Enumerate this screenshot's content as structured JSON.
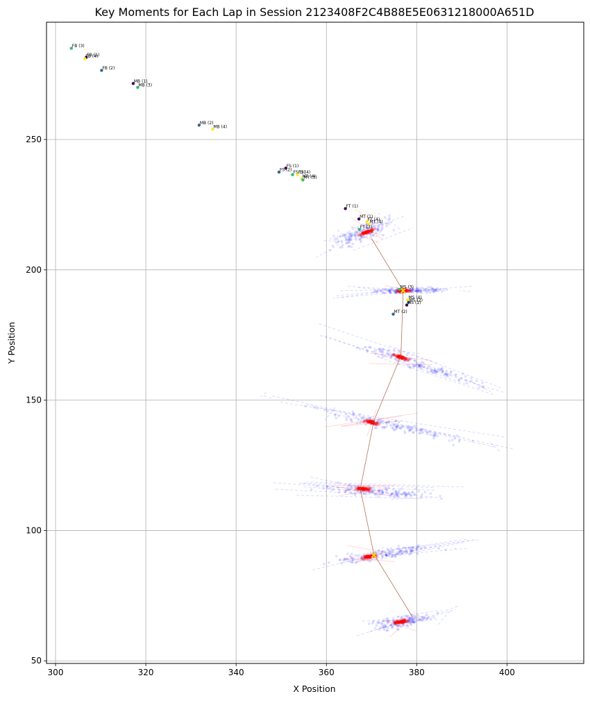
{
  "chart_data": {
    "type": "scatter",
    "title": "Key Moments for Each Lap in Session 2123408F2C4B88E5E0631218000A651D",
    "xlabel": "X Position",
    "ylabel": "Y Position",
    "xlim": [
      298,
      417
    ],
    "ylim": [
      49,
      295
    ],
    "xticks": [
      300,
      320,
      340,
      360,
      380,
      400
    ],
    "yticks": [
      50,
      100,
      150,
      200,
      250
    ],
    "grid": true,
    "legend": "none",
    "colors": {
      "trace_blue": "#0000ff",
      "trace_red": "#ff0000",
      "path": "#a0522d",
      "lap1": "#440154",
      "lap2": "#31688e",
      "lap3": "#35b779",
      "lap4": "#fde725",
      "marker_cross": "#ffd700"
    },
    "trace_clusters": [
      {
        "cx": 368,
        "cy": 214,
        "spread_x": 9,
        "spread_y": 5,
        "slope": 0.6,
        "red_cx": 369,
        "red_cy": 214.5
      },
      {
        "cx": 378,
        "cy": 192,
        "spread_x": 12,
        "spread_y": 1.5,
        "slope": 0.05,
        "red_cx": 377,
        "red_cy": 192
      },
      {
        "cx": 380,
        "cy": 164,
        "spread_x": 18,
        "spread_y": 3,
        "slope": -0.55,
        "red_cx": 376.5,
        "red_cy": 166.5
      },
      {
        "cx": 375,
        "cy": 140,
        "spread_x": 22,
        "spread_y": 3,
        "slope": -0.35,
        "red_cx": 370,
        "red_cy": 141.5
      },
      {
        "cx": 372,
        "cy": 115,
        "spread_x": 18,
        "spread_y": 2.5,
        "slope": -0.12,
        "red_cx": 368,
        "red_cy": 116
      },
      {
        "cx": 373,
        "cy": 91,
        "spread_x": 15,
        "spread_y": 3,
        "slope": 0.25,
        "red_cx": 369.5,
        "red_cy": 90
      },
      {
        "cx": 377,
        "cy": 65,
        "spread_x": 10,
        "spread_y": 3,
        "slope": 0.3,
        "red_cx": 376.5,
        "red_cy": 65
      }
    ],
    "path_line": [
      [
        370,
        212
      ],
      [
        377,
        192
      ],
      [
        376.5,
        167
      ],
      [
        370.5,
        142
      ],
      [
        367.5,
        116
      ],
      [
        370.5,
        91
      ],
      [
        379,
        67
      ]
    ],
    "cross_markers": [
      [
        377,
        192
      ],
      [
        370.5,
        90.5
      ]
    ],
    "key_moments": [
      {
        "label": "FB (3)",
        "x": 303.5,
        "y": 285,
        "lap": 3
      },
      {
        "label": "FB (1)",
        "x": 306.8,
        "y": 281.5,
        "lap": 1
      },
      {
        "label": "FB (4)",
        "x": 306.5,
        "y": 281,
        "lap": 4
      },
      {
        "label": "FB (2)",
        "x": 310.2,
        "y": 276.5,
        "lap": 2
      },
      {
        "label": "MB (1)",
        "x": 317.2,
        "y": 271.5,
        "lap": 1
      },
      {
        "label": "MB (3)",
        "x": 318.2,
        "y": 270,
        "lap": 3
      },
      {
        "label": "MB (2)",
        "x": 331.8,
        "y": 255.5,
        "lap": 2
      },
      {
        "label": "MB (4)",
        "x": 334.8,
        "y": 254,
        "lap": 4
      },
      {
        "label": "FS (1)",
        "x": 351,
        "y": 239,
        "lap": 1
      },
      {
        "label": "FS (2)",
        "x": 349.5,
        "y": 237.5,
        "lap": 2
      },
      {
        "label": "FS (3)",
        "x": 352.5,
        "y": 236.5,
        "lap": 3
      },
      {
        "label": "FS (4)",
        "x": 353.6,
        "y": 236.5,
        "lap": 4
      },
      {
        "label": "MT (4)",
        "x": 354.5,
        "y": 235,
        "lap": 4
      },
      {
        "label": "MT (3)",
        "x": 354.8,
        "y": 234.5,
        "lap": 3
      },
      {
        "label": "FT (1)",
        "x": 364.2,
        "y": 223.5,
        "lap": 1
      },
      {
        "label": "MT (1)",
        "x": 367.2,
        "y": 219.5,
        "lap": 1
      },
      {
        "label": "FT (4)",
        "x": 369,
        "y": 218.5,
        "lap": 4
      },
      {
        "label": "MT (4)",
        "x": 369.4,
        "y": 217.5,
        "lap": 4
      },
      {
        "label": "FT (3)",
        "x": 367.3,
        "y": 215.5,
        "lap": 3
      },
      {
        "label": "MS (3)",
        "x": 376.2,
        "y": 192.5,
        "lap": 3
      },
      {
        "label": "MS (4)",
        "x": 378,
        "y": 188.5,
        "lap": 4
      },
      {
        "label": "MS (2)",
        "x": 378.2,
        "y": 187.5,
        "lap": 2
      },
      {
        "label": "MS (1)",
        "x": 377.8,
        "y": 186.5,
        "lap": 1
      },
      {
        "label": "MT (2)",
        "x": 374.8,
        "y": 183,
        "lap": 2
      }
    ]
  }
}
